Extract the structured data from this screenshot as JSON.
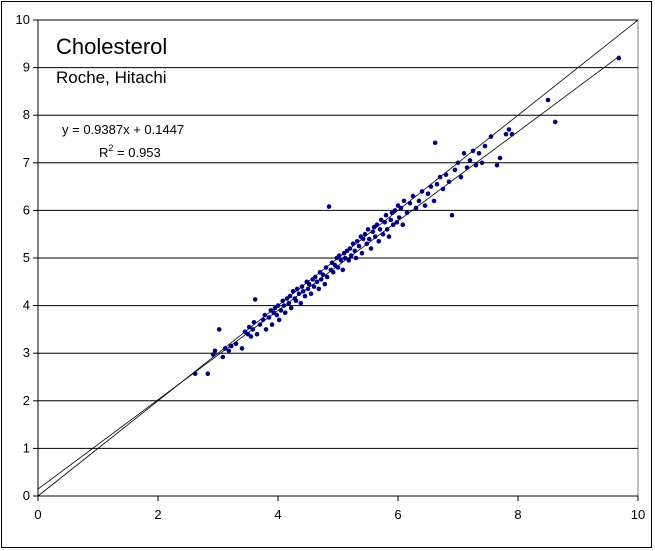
{
  "chart_data": {
    "type": "scatter",
    "title": "Cholesterol",
    "subtitle": "Roche, Hitachi",
    "xlabel": "",
    "ylabel": "",
    "xlim": [
      0,
      10
    ],
    "ylim": [
      0,
      10
    ],
    "xticks": [
      "0",
      "2",
      "4",
      "6",
      "8",
      "10"
    ],
    "yticks": [
      "0",
      "1",
      "2",
      "3",
      "4",
      "5",
      "6",
      "7",
      "8",
      "9",
      "10"
    ],
    "grid": "horizontal",
    "point_color": "#000080",
    "trendline": {
      "slope": 0.9387,
      "intercept": 0.1447,
      "label": "y = 0.9387x + 0.1447"
    },
    "r_squared": {
      "prefix": "R",
      "exponent": "2",
      "value_text": " = 0.953"
    },
    "identity_line": true,
    "points": [
      [
        2.62,
        2.57
      ],
      [
        2.83,
        2.57
      ],
      [
        2.92,
        2.97
      ],
      [
        2.95,
        3.05
      ],
      [
        3.02,
        3.5
      ],
      [
        3.08,
        2.92
      ],
      [
        3.12,
        3.1
      ],
      [
        3.18,
        3.05
      ],
      [
        3.22,
        3.15
      ],
      [
        3.3,
        3.2
      ],
      [
        3.4,
        3.1
      ],
      [
        3.45,
        3.45
      ],
      [
        3.5,
        3.4
      ],
      [
        3.52,
        3.55
      ],
      [
        3.55,
        3.35
      ],
      [
        3.58,
        3.5
      ],
      [
        3.6,
        3.65
      ],
      [
        3.62,
        4.13
      ],
      [
        3.65,
        3.4
      ],
      [
        3.7,
        3.6
      ],
      [
        3.75,
        3.7
      ],
      [
        3.78,
        3.8
      ],
      [
        3.8,
        3.5
      ],
      [
        3.85,
        3.75
      ],
      [
        3.88,
        3.9
      ],
      [
        3.9,
        3.6
      ],
      [
        3.93,
        3.85
      ],
      [
        3.95,
        3.95
      ],
      [
        3.98,
        3.8
      ],
      [
        4.0,
        4.0
      ],
      [
        4.02,
        3.7
      ],
      [
        4.05,
        3.9
      ],
      [
        4.08,
        4.1
      ],
      [
        4.1,
        4.0
      ],
      [
        4.12,
        3.85
      ],
      [
        4.15,
        4.15
      ],
      [
        4.18,
        4.05
      ],
      [
        4.2,
        4.2
      ],
      [
        4.22,
        3.95
      ],
      [
        4.25,
        4.3
      ],
      [
        4.28,
        4.15
      ],
      [
        4.3,
        4.1
      ],
      [
        4.32,
        4.35
      ],
      [
        4.35,
        4.25
      ],
      [
        4.38,
        4.05
      ],
      [
        4.4,
        4.4
      ],
      [
        4.42,
        4.3
      ],
      [
        4.45,
        4.2
      ],
      [
        4.48,
        4.5
      ],
      [
        4.5,
        4.35
      ],
      [
        4.52,
        4.45
      ],
      [
        4.55,
        4.25
      ],
      [
        4.58,
        4.55
      ],
      [
        4.6,
        4.4
      ],
      [
        4.62,
        4.6
      ],
      [
        4.65,
        4.5
      ],
      [
        4.68,
        4.35
      ],
      [
        4.7,
        4.7
      ],
      [
        4.72,
        4.55
      ],
      [
        4.75,
        4.65
      ],
      [
        4.78,
        4.45
      ],
      [
        4.8,
        4.8
      ],
      [
        4.82,
        4.6
      ],
      [
        4.85,
        6.08
      ],
      [
        4.88,
        4.75
      ],
      [
        4.9,
        4.9
      ],
      [
        4.92,
        4.7
      ],
      [
        4.95,
        4.85
      ],
      [
        4.98,
        5.0
      ],
      [
        5.0,
        4.8
      ],
      [
        5.02,
        5.05
      ],
      [
        5.05,
        4.95
      ],
      [
        5.08,
        4.75
      ],
      [
        5.1,
        5.1
      ],
      [
        5.12,
        5.0
      ],
      [
        5.15,
        5.15
      ],
      [
        5.18,
        4.95
      ],
      [
        5.2,
        5.2
      ],
      [
        5.22,
        5.05
      ],
      [
        5.25,
        5.3
      ],
      [
        5.28,
        5.15
      ],
      [
        5.3,
        5.0
      ],
      [
        5.32,
        5.35
      ],
      [
        5.35,
        5.25
      ],
      [
        5.38,
        5.45
      ],
      [
        5.4,
        5.1
      ],
      [
        5.42,
        5.4
      ],
      [
        5.45,
        5.5
      ],
      [
        5.48,
        5.3
      ],
      [
        5.5,
        5.6
      ],
      [
        5.52,
        5.4
      ],
      [
        5.55,
        5.2
      ],
      [
        5.58,
        5.55
      ],
      [
        5.6,
        5.65
      ],
      [
        5.62,
        5.45
      ],
      [
        5.65,
        5.7
      ],
      [
        5.68,
        5.35
      ],
      [
        5.7,
        5.6
      ],
      [
        5.72,
        5.8
      ],
      [
        5.75,
        5.5
      ],
      [
        5.78,
        5.75
      ],
      [
        5.8,
        5.9
      ],
      [
        5.82,
        5.6
      ],
      [
        5.85,
        5.45
      ],
      [
        5.88,
        5.8
      ],
      [
        5.9,
        5.95
      ],
      [
        5.92,
        5.7
      ],
      [
        5.95,
        6.0
      ],
      [
        5.98,
        5.75
      ],
      [
        6.0,
        6.1
      ],
      [
        6.02,
        5.85
      ],
      [
        6.05,
        6.05
      ],
      [
        6.08,
        5.7
      ],
      [
        6.1,
        6.2
      ],
      [
        6.15,
        5.95
      ],
      [
        6.2,
        6.15
      ],
      [
        6.25,
        6.3
      ],
      [
        6.3,
        6.05
      ],
      [
        6.35,
        6.2
      ],
      [
        6.4,
        6.4
      ],
      [
        6.45,
        6.1
      ],
      [
        6.5,
        6.35
      ],
      [
        6.55,
        6.5
      ],
      [
        6.6,
        6.2
      ],
      [
        6.62,
        7.42
      ],
      [
        6.65,
        6.55
      ],
      [
        6.7,
        6.7
      ],
      [
        6.75,
        6.45
      ],
      [
        6.8,
        6.75
      ],
      [
        6.85,
        6.6
      ],
      [
        6.9,
        5.9
      ],
      [
        6.95,
        6.85
      ],
      [
        7.0,
        7.0
      ],
      [
        7.05,
        6.7
      ],
      [
        7.1,
        7.2
      ],
      [
        7.15,
        6.9
      ],
      [
        7.2,
        7.05
      ],
      [
        7.25,
        7.25
      ],
      [
        7.3,
        6.95
      ],
      [
        7.35,
        7.2
      ],
      [
        7.4,
        7.0
      ],
      [
        7.45,
        7.35
      ],
      [
        7.55,
        7.55
      ],
      [
        7.65,
        6.95
      ],
      [
        7.7,
        7.1
      ],
      [
        7.8,
        7.6
      ],
      [
        7.85,
        7.7
      ],
      [
        7.9,
        7.6
      ],
      [
        8.5,
        8.32
      ],
      [
        8.62,
        7.86
      ],
      [
        9.68,
        9.2
      ]
    ]
  }
}
